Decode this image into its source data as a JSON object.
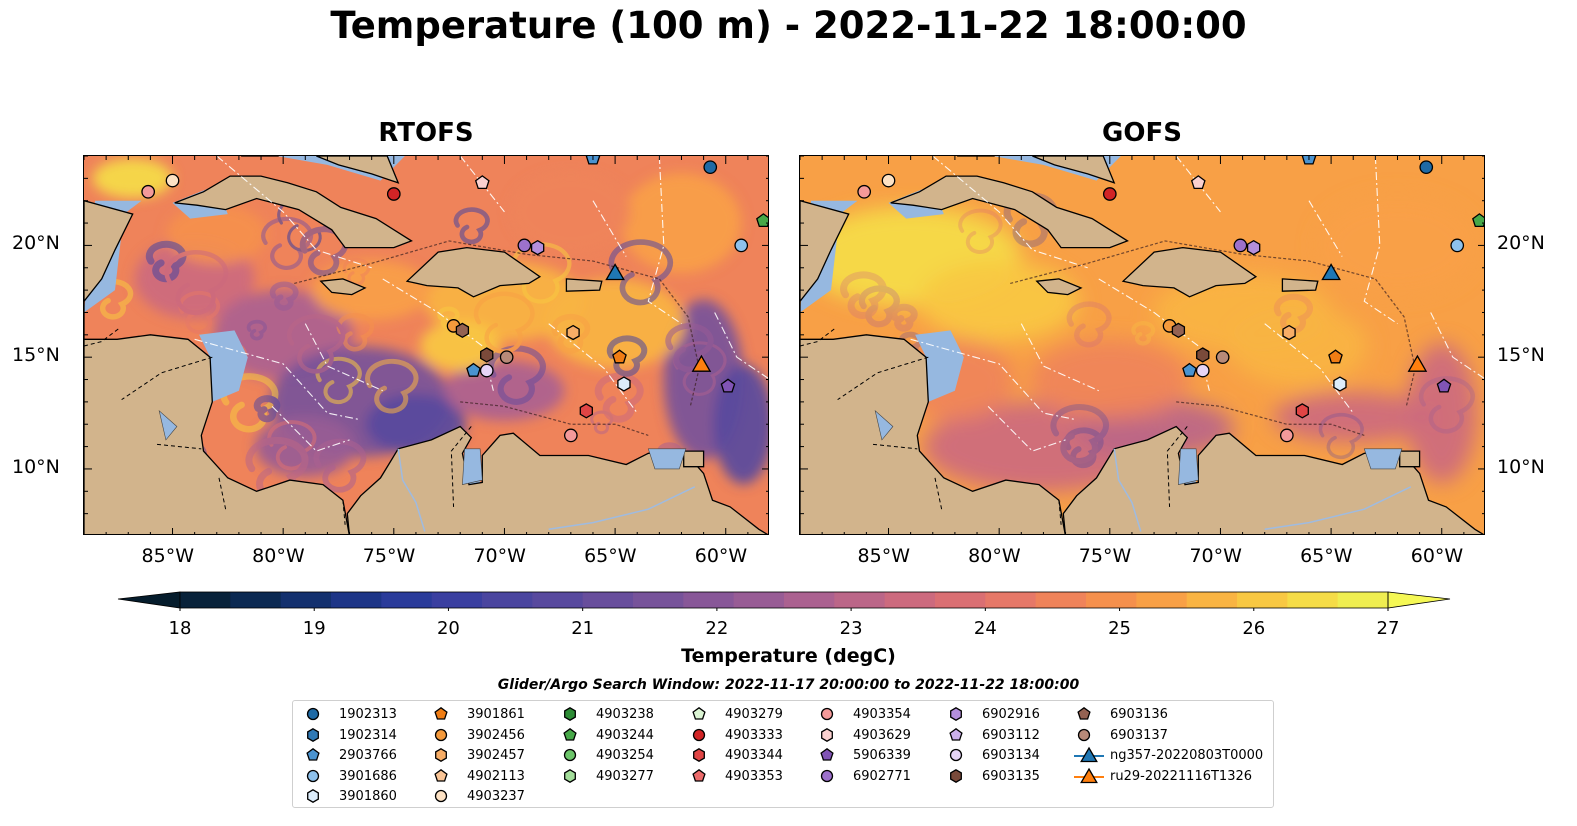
{
  "title": "Temperature (100 m) - 2022-11-22 18:00:00",
  "chart_data": [
    {
      "type": "heatmap",
      "title": "RTOFS",
      "variable": "Temperature (100 m)",
      "map_region": "Caribbean Sea",
      "xlim": [
        -89,
        -58
      ],
      "ylim": [
        7,
        24
      ],
      "xticks": [
        "85°W",
        "80°W",
        "75°W",
        "70°W",
        "65°W",
        "60°W"
      ],
      "yticks": [
        "20°N",
        "15°N",
        "10°N"
      ],
      "field_description": "predominantly warm 24-26 degC with cool swirling eddies of 20-22 degC in southwest basin and east of 62W"
    },
    {
      "type": "heatmap",
      "title": "GOFS",
      "variable": "Temperature (100 m)",
      "map_region": "Caribbean Sea",
      "xlim": [
        -89,
        -58
      ],
      "ylim": [
        7,
        24
      ],
      "xticks": [
        "85°W",
        "80°W",
        "75°W",
        "70°W",
        "65°W",
        "60°W"
      ],
      "yticks": [
        "20°N",
        "15°N",
        "10°N"
      ],
      "field_description": "smoother warm field 24-26 degC, warmest (~27 degC) north-west near Cayman basin, cooler 22-23 degC along South American coast"
    }
  ],
  "colorbar": {
    "label": "Temperature (degC)",
    "min": 18,
    "max": 27,
    "step": 0.5,
    "ticks": [
      "18",
      "19",
      "20",
      "21",
      "22",
      "23",
      "24",
      "25",
      "26",
      "27"
    ],
    "colors": [
      "#08223a",
      "#0b2952",
      "#13306e",
      "#1d3587",
      "#2a3b9a",
      "#3a3fa0",
      "#4a459f",
      "#58499e",
      "#684e9c",
      "#77539a",
      "#885798",
      "#985c95",
      "#ab6190",
      "#bb6688",
      "#cc6a7e",
      "#da6f73",
      "#e67868",
      "#ef835a",
      "#f5904d",
      "#f8a046",
      "#f9b443",
      "#f8c843",
      "#f5dc47",
      "#efee51"
    ],
    "under_color": "#051c2c",
    "over_color": "#f5f855"
  },
  "legend": {
    "title": "Glider/Argo Search Window: 2022-11-17 20:00:00 to 2022-11-22 18:00:00",
    "columns": [
      [
        {
          "label": "1902313",
          "marker": "circle",
          "color": "#1f6aa5"
        },
        {
          "label": "1902314",
          "marker": "hexagon",
          "color": "#2f79b5"
        },
        {
          "label": "2903766",
          "marker": "pentagon",
          "color": "#4a93d0"
        },
        {
          "label": "3901686",
          "marker": "circle",
          "color": "#8ec1ec"
        },
        {
          "label": "3901860",
          "marker": "hexagon",
          "color": "#dcecfa"
        }
      ],
      [
        {
          "label": "3901861",
          "marker": "pentagon",
          "color": "#f07d14"
        },
        {
          "label": "3902456",
          "marker": "circle",
          "color": "#f59a3c"
        },
        {
          "label": "3902457",
          "marker": "hexagon",
          "color": "#f7ad66"
        },
        {
          "label": "4902113",
          "marker": "pentagon",
          "color": "#fac596"
        },
        {
          "label": "4903237",
          "marker": "circle",
          "color": "#fde2c4"
        }
      ],
      [
        {
          "label": "4903238",
          "marker": "hexagon",
          "color": "#2d8c35"
        },
        {
          "label": "4903244",
          "marker": "pentagon",
          "color": "#47a848"
        },
        {
          "label": "4903254",
          "marker": "circle",
          "color": "#6cc56a"
        },
        {
          "label": "4903277",
          "marker": "hexagon",
          "color": "#a3dd9a"
        }
      ],
      [
        {
          "label": "4903279",
          "marker": "pentagon",
          "color": "#dcf5d4"
        },
        {
          "label": "4903333",
          "marker": "circle",
          "color": "#d22426"
        },
        {
          "label": "4903344",
          "marker": "hexagon",
          "color": "#e04545"
        },
        {
          "label": "4903353",
          "marker": "pentagon",
          "color": "#ec6b6b"
        }
      ],
      [
        {
          "label": "4903354",
          "marker": "circle",
          "color": "#f49a9a"
        },
        {
          "label": "4903629",
          "marker": "hexagon",
          "color": "#fad0cf"
        },
        {
          "label": "5906339",
          "marker": "pentagon",
          "color": "#8154b5"
        },
        {
          "label": "6902771",
          "marker": "circle",
          "color": "#9d71cc"
        }
      ],
      [
        {
          "label": "6902916",
          "marker": "hexagon",
          "color": "#b48fdc"
        },
        {
          "label": "6903112",
          "marker": "pentagon",
          "color": "#cbb0ea"
        },
        {
          "label": "6903134",
          "marker": "circle",
          "color": "#e6d4f6"
        },
        {
          "label": "6903135",
          "marker": "hexagon",
          "color": "#7a4a3a"
        }
      ],
      [
        {
          "label": "6903136",
          "marker": "pentagon",
          "color": "#946252"
        },
        {
          "label": "6903137",
          "marker": "circle",
          "color": "#b88a78"
        },
        {
          "label": "ng357-20220803T0000",
          "marker": "triangle-line",
          "color": "#1f77b4"
        },
        {
          "label": "ru29-20221116T1326",
          "marker": "triangle-line",
          "color": "#ff7f0e"
        }
      ]
    ]
  },
  "stations": [
    {
      "marker": "circle",
      "color": "#f49a9a",
      "lon": -86.1,
      "lat": 22.4
    },
    {
      "marker": "circle",
      "color": "#fde2c4",
      "lon": -85.0,
      "lat": 22.9
    },
    {
      "marker": "circle",
      "color": "#d22426",
      "lon": -75.0,
      "lat": 22.3
    },
    {
      "marker": "pentagon",
      "color": "#fad0cf",
      "lon": -71.0,
      "lat": 22.8
    },
    {
      "marker": "pentagon",
      "color": "#4a93d0",
      "lon": -66.0,
      "lat": 23.9
    },
    {
      "marker": "circle",
      "color": "#1f6aa5",
      "lon": -60.7,
      "lat": 23.5
    },
    {
      "marker": "pentagon",
      "color": "#47a848",
      "lon": -58.3,
      "lat": 21.1
    },
    {
      "marker": "circle",
      "color": "#9d71cc",
      "lon": -69.1,
      "lat": 20.0
    },
    {
      "marker": "hexagon",
      "color": "#b48fdc",
      "lon": -68.5,
      "lat": 19.9
    },
    {
      "marker": "circle",
      "color": "#8ec1ec",
      "lon": -59.3,
      "lat": 20.0
    },
    {
      "marker": "circle",
      "color": "#f59a3c",
      "lon": -72.3,
      "lat": 16.4
    },
    {
      "marker": "hexagon",
      "color": "#946252",
      "lon": -71.9,
      "lat": 16.2
    },
    {
      "marker": "hexagon",
      "color": "#f7ad66",
      "lon": -66.9,
      "lat": 16.1
    },
    {
      "marker": "hexagon",
      "color": "#7a4a3a",
      "lon": -70.8,
      "lat": 15.1
    },
    {
      "marker": "circle",
      "color": "#b88a78",
      "lon": -69.9,
      "lat": 15.0
    },
    {
      "marker": "pentagon",
      "color": "#4a93d0",
      "lon": -71.4,
      "lat": 14.4
    },
    {
      "marker": "circle",
      "color": "#e6d4f6",
      "lon": -70.8,
      "lat": 14.4
    },
    {
      "marker": "pentagon",
      "color": "#f07d14",
      "lon": -64.8,
      "lat": 15.0
    },
    {
      "marker": "hexagon",
      "color": "#dcecfa",
      "lon": -64.6,
      "lat": 13.8
    },
    {
      "marker": "pentagon",
      "color": "#8154b5",
      "lon": -59.9,
      "lat": 13.7
    },
    {
      "marker": "hexagon",
      "color": "#e04545",
      "lon": -66.3,
      "lat": 12.6
    },
    {
      "marker": "circle",
      "color": "#f49a9a",
      "lon": -67.0,
      "lat": 11.5
    },
    {
      "marker": "triangle",
      "color": "#1f77b4",
      "lon": -65.0,
      "lat": 18.7
    },
    {
      "marker": "triangle",
      "color": "#ff7f0e",
      "lon": -61.1,
      "lat": 14.6
    }
  ]
}
